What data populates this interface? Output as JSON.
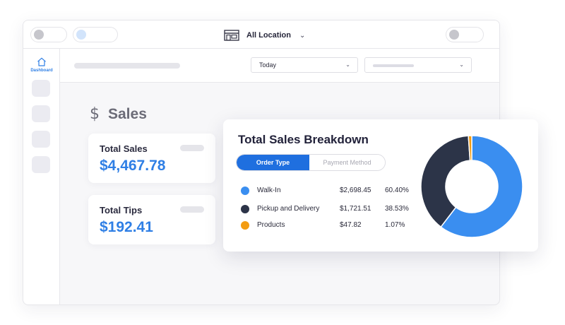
{
  "topbar": {
    "location_label": "All Location",
    "location_icon": "store-icon",
    "chevron_icon": "chevron-down-icon"
  },
  "sidebar": {
    "items": [
      {
        "label": "Dashboard",
        "icon": "home-icon",
        "active": true
      }
    ],
    "active_color": "#2f7fe5"
  },
  "filters": {
    "date_select": {
      "value": "Today"
    }
  },
  "section": {
    "title": "Sales",
    "icon": "dollar-icon"
  },
  "metrics": [
    {
      "name": "Total Sales",
      "value": "$4,467.78"
    },
    {
      "name": "Total Tips",
      "value": "$192.41"
    }
  ],
  "breakdown": {
    "title": "Total Sales Breakdown",
    "tabs": [
      {
        "label": "Order Type",
        "active": true
      },
      {
        "label": "Payment Method",
        "active": false
      }
    ],
    "rows": [
      {
        "label": "Walk-In",
        "amount": "$2,698.45",
        "percent": "60.40%",
        "color": "#3a8ef0"
      },
      {
        "label": "Pickup and Delivery",
        "amount": "$1,721.51",
        "percent": "38.53%",
        "color": "#2c3448"
      },
      {
        "label": "Products",
        "amount": "$47.82",
        "percent": "1.07%",
        "color": "#f39c12"
      }
    ]
  },
  "chart_data": {
    "type": "pie",
    "categories": [
      "Walk-In",
      "Pickup and Delivery",
      "Products"
    ],
    "values": [
      60.4,
      38.53,
      1.07
    ],
    "colors": [
      "#3a8ef0",
      "#2c3448",
      "#f39c12"
    ]
  }
}
